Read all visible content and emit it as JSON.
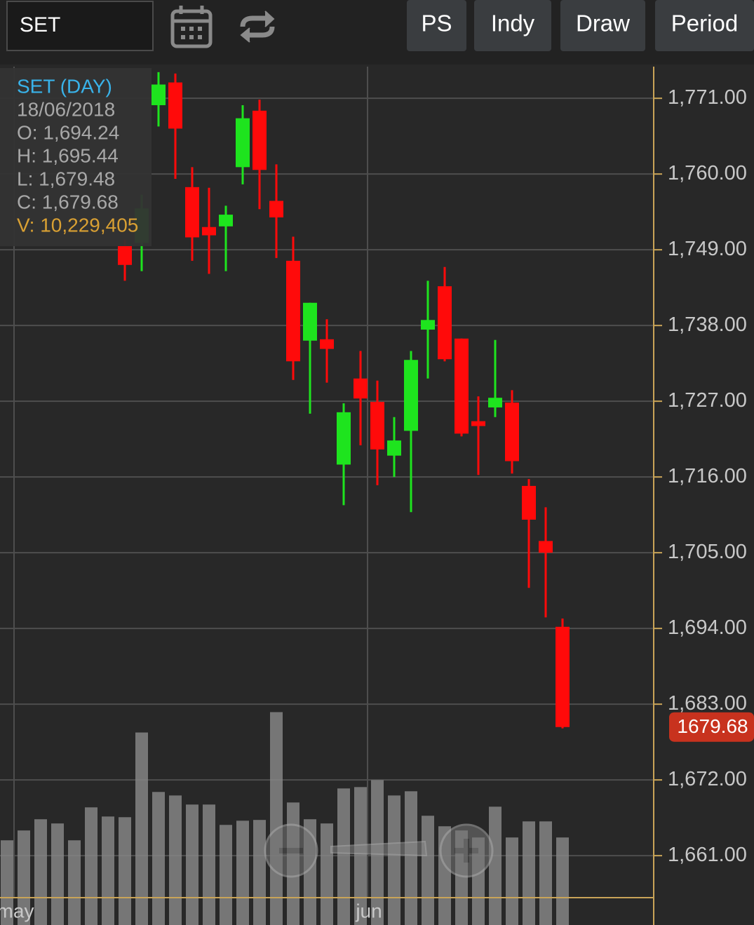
{
  "toolbar": {
    "symbol": "SET",
    "buttons": [
      "PS",
      "Indy",
      "Draw",
      "Period"
    ]
  },
  "tooltip": {
    "title": "SET (DAY)",
    "date": "18/06/2018",
    "open": "O: 1,694.24",
    "high": "H: 1,695.44",
    "low": "L: 1,679.48",
    "close": "C: 1,679.68",
    "volume": "V: 10,229,405"
  },
  "chart_data": {
    "type": "candlestick",
    "categories": [
      "may",
      null,
      null,
      null,
      null,
      null,
      null,
      null,
      null,
      null,
      null,
      null,
      null,
      null,
      null,
      null,
      null,
      null,
      null,
      null,
      null,
      "jun",
      null,
      null,
      null,
      null,
      null,
      null,
      null,
      null,
      null,
      null,
      null,
      null
    ],
    "open": [
      null,
      null,
      null,
      null,
      null,
      null,
      null,
      1749.6,
      1750.0,
      1770.0,
      1773.3,
      1758.1,
      1752.3,
      1752.4,
      1761.0,
      1769.2,
      1756.1,
      1747.4,
      1735.8,
      1736.0,
      1717.8,
      1730.3,
      1726.9,
      1719.1,
      1722.7,
      1737.4,
      1743.7,
      1736.1,
      1724.1,
      1726.1,
      1726.8,
      1714.7,
      1706.7,
      1694.24
    ],
    "high": [
      null,
      null,
      null,
      null,
      null,
      null,
      null,
      1750.5,
      1757.0,
      1774.8,
      1774.6,
      1761.0,
      1758.0,
      1755.4,
      1770.0,
      1770.8,
      1761.4,
      1750.9,
      1741.3,
      1738.9,
      1726.7,
      1734.3,
      1730.0,
      1724.7,
      1734.3,
      1744.5,
      1746.5,
      1736.1,
      1727.7,
      1735.9,
      1728.6,
      1715.7,
      1711.6,
      1695.44
    ],
    "low": [
      null,
      null,
      null,
      null,
      null,
      null,
      null,
      1744.5,
      1745.9,
      1766.9,
      1759.3,
      1747.4,
      1745.5,
      1745.9,
      1758.5,
      1754.9,
      1747.8,
      1730.1,
      1725.2,
      1729.7,
      1711.9,
      1720.6,
      1714.8,
      1716.0,
      1710.9,
      1730.3,
      1732.8,
      1721.9,
      1716.3,
      1724.7,
      1716.5,
      1699.9,
      1695.6,
      1679.48
    ],
    "close": [
      null,
      null,
      null,
      null,
      null,
      null,
      null,
      1746.8,
      1755.0,
      1773.0,
      1766.6,
      1750.8,
      1751.1,
      1754.1,
      1768.1,
      1760.6,
      1753.7,
      1732.8,
      1741.3,
      1734.6,
      1725.4,
      1727.4,
      1720.0,
      1721.3,
      1733.0,
      1738.8,
      1733.1,
      1722.3,
      1723.4,
      1727.5,
      1718.3,
      1709.8,
      1705.0,
      1679.68
    ],
    "volume": [
      9900000,
      11050000,
      12360000,
      11870000,
      9900000,
      13750000,
      12680000,
      12600000,
      22500000,
      15550000,
      15140000,
      14080000,
      14080000,
      11700000,
      12190000,
      12280000,
      24880000,
      14320000,
      12360000,
      11870000,
      15960000,
      16120000,
      16940000,
      15140000,
      15630000,
      12770000,
      11540000,
      11050000,
      10230000,
      13830000,
      10230000,
      12110000,
      12110000,
      10229405
    ],
    "volume_lim": [
      0,
      25000000
    ],
    "up_color": "#1ee41e",
    "down_color": "#ff0a0a",
    "volume_color": "#8a8a8a",
    "ylim": [
      1654.9,
      1775.6
    ],
    "yticks": [
      {
        "value": 1771,
        "label": "1,771.00"
      },
      {
        "value": 1760,
        "label": "1,760.00"
      },
      {
        "value": 1749,
        "label": "1,749.00"
      },
      {
        "value": 1738,
        "label": "1,738.00"
      },
      {
        "value": 1727,
        "label": "1,727.00"
      },
      {
        "value": 1716,
        "label": "1,716.00"
      },
      {
        "value": 1705,
        "label": "1,705.00"
      },
      {
        "value": 1694,
        "label": "1,694.00"
      },
      {
        "value": 1683,
        "label": "1,683.00"
      },
      {
        "value": 1672,
        "label": "1,672.00"
      },
      {
        "value": 1661,
        "label": "1,661.00"
      }
    ],
    "grid": true
  }
}
